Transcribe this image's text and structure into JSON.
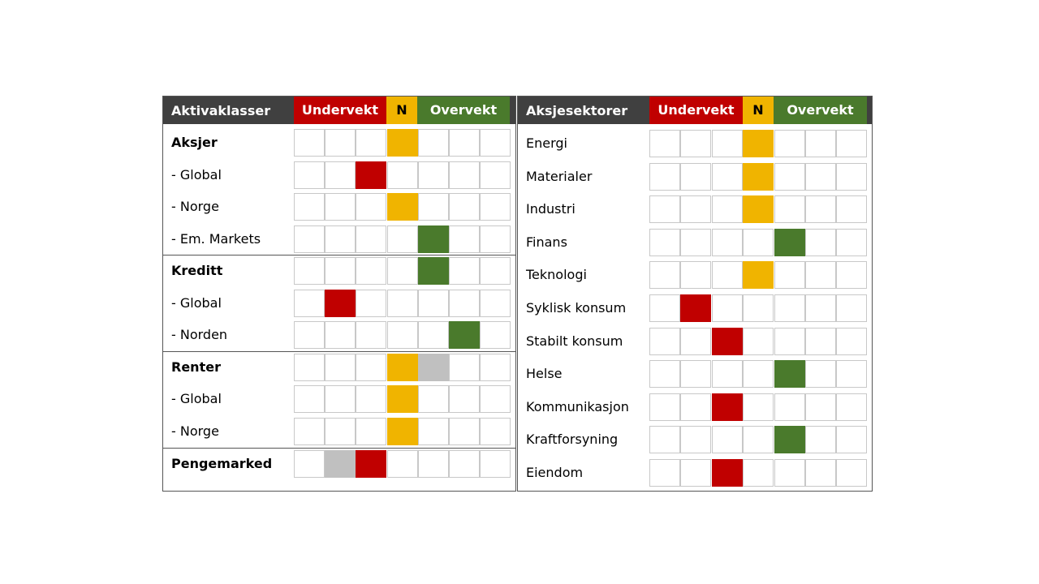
{
  "colors": {
    "under": "#c00000",
    "neutral": "#f0b400",
    "over": "#4a7a2c",
    "previous": "#c0c0c0",
    "empty": "#ffffff",
    "header_dark": "#404040"
  },
  "chart_data": [
    {
      "type": "table",
      "title": "Aktivaklasser",
      "scale_headers": {
        "under": "Undervekt",
        "neutral": "N",
        "over": "Overvekt"
      },
      "scale_positions": 7,
      "scale_note": "positions 1-3 undervekt, 4 neutral, 5-7 overvekt",
      "groups": [
        {
          "rows": [
            {
              "label": "Aksjer",
              "bold": true,
              "position": 4
            },
            {
              "label": "- Global",
              "bold": false,
              "position": 3
            },
            {
              "label": "- Norge",
              "bold": false,
              "position": 4
            },
            {
              "label": "- Em. Markets",
              "bold": false,
              "position": 5
            }
          ]
        },
        {
          "rows": [
            {
              "label": "Kreditt",
              "bold": true,
              "position": 5
            },
            {
              "label": "- Global",
              "bold": false,
              "position": 2
            },
            {
              "label": "- Norden",
              "bold": false,
              "position": 6
            }
          ]
        },
        {
          "rows": [
            {
              "label": "Renter",
              "bold": true,
              "position": 4,
              "previous_position": 5
            },
            {
              "label": "- Global",
              "bold": false,
              "position": 4
            },
            {
              "label": "- Norge",
              "bold": false,
              "position": 4
            }
          ]
        },
        {
          "rows": [
            {
              "label": "Pengemarked",
              "bold": true,
              "position": 3,
              "previous_position": 2
            }
          ]
        }
      ]
    },
    {
      "type": "table",
      "title": "Aksjesektorer",
      "scale_headers": {
        "under": "Undervekt",
        "neutral": "N",
        "over": "Overvekt"
      },
      "scale_positions": 7,
      "scale_note": "positions 1-3 undervekt, 4 neutral, 5-7 overvekt",
      "groups": [
        {
          "rows": [
            {
              "label": "Energi",
              "bold": false,
              "position": 4
            },
            {
              "label": "Materialer",
              "bold": false,
              "position": 4
            },
            {
              "label": "Industri",
              "bold": false,
              "position": 4
            },
            {
              "label": "Finans",
              "bold": false,
              "position": 5
            },
            {
              "label": "Teknologi",
              "bold": false,
              "position": 4
            },
            {
              "label": "Syklisk konsum",
              "bold": false,
              "position": 2
            },
            {
              "label": "Stabilt konsum",
              "bold": false,
              "position": 3
            },
            {
              "label": "Helse",
              "bold": false,
              "position": 5
            },
            {
              "label": "Kommunikasjon",
              "bold": false,
              "position": 3
            },
            {
              "label": "Kraftforsyning",
              "bold": false,
              "position": 5
            },
            {
              "label": "Eiendom",
              "bold": false,
              "position": 3
            }
          ]
        }
      ]
    }
  ]
}
